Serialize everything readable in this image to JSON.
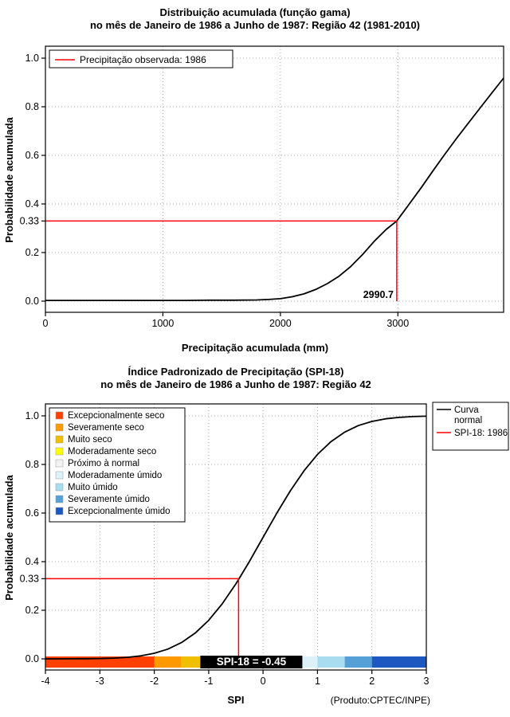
{
  "page": {
    "background": "#FFFFFF"
  },
  "chart_data": [
    {
      "id": "gamma_cdf",
      "type": "line",
      "title": "Distribuição acumulada (função gama)",
      "subtitle": "no mês de Janeiro de 1986 a Junho de 1987: Região 42 (1981-2010)",
      "xlabel": "Precipitação acumulada (mm)",
      "ylabel": "Probabilidade acumulada",
      "xlim": [
        0,
        3900
      ],
      "ylim": [
        0,
        1
      ],
      "grid": true,
      "xticks": {
        "values": [
          0,
          1000,
          2000,
          3000
        ],
        "labels": [
          "0",
          "1000",
          "2000",
          "3000"
        ]
      },
      "yticks": {
        "values": [
          0,
          0.2,
          0.4,
          0.6,
          0.8,
          1
        ],
        "labels": [
          "0.0",
          "0.2",
          "0.4",
          "0.6",
          "0.8",
          "1.0"
        ]
      },
      "ytick_extra": {
        "value": 0.33,
        "label": "0.33"
      },
      "legend": [
        {
          "label": "Precipitação observada: 1986",
          "color": "#FF0000",
          "swatch": "line"
        }
      ],
      "series": [
        {
          "name": "Distribuição gama acumulada",
          "color": "#000000",
          "x": [
            0,
            200,
            400,
            600,
            800,
            1000,
            1200,
            1400,
            1600,
            1800,
            1900,
            2000,
            2100,
            2200,
            2300,
            2400,
            2500,
            2600,
            2700,
            2800,
            2900,
            2990.7,
            3100,
            3200,
            3300,
            3400,
            3500,
            3600,
            3700,
            3800,
            3900
          ],
          "y": [
            0.003,
            0.003,
            0.003,
            0.003,
            0.003,
            0.003,
            0.003,
            0.004,
            0.004,
            0.005,
            0.007,
            0.01,
            0.018,
            0.03,
            0.048,
            0.072,
            0.103,
            0.143,
            0.192,
            0.247,
            0.295,
            0.33,
            0.402,
            0.468,
            0.537,
            0.605,
            0.67,
            0.733,
            0.795,
            0.857,
            0.918
          ]
        }
      ],
      "annotation": {
        "x": 2990.7,
        "y": 0.33,
        "label": "2990.7",
        "color": "#FF0000"
      }
    },
    {
      "id": "spi18_cdf",
      "type": "line",
      "title": "Índice Padronizado de Precipitação (SPI-18)",
      "subtitle": "no mês de Janeiro de 1986 a Junho de 1987: Região 42",
      "xlabel": "SPI",
      "ylabel": "Probabilidade acumulada",
      "xlim": [
        -4,
        3
      ],
      "ylim": [
        0,
        1
      ],
      "grid": true,
      "xticks": {
        "values": [
          -4,
          -3,
          -2,
          -1,
          0,
          1,
          2,
          3
        ],
        "labels": [
          "-4",
          "-3",
          "-2",
          "-1",
          "0",
          "1",
          "2",
          "3"
        ]
      },
      "yticks": {
        "values": [
          0,
          0.2,
          0.4,
          0.6,
          0.8,
          1
        ],
        "labels": [
          "0.0",
          "0.2",
          "0.4",
          "0.6",
          "0.8",
          "1.0"
        ]
      },
      "ytick_extra": {
        "value": 0.33,
        "label": "0.33"
      },
      "legend_categories": [
        {
          "label": "Excepcionalmente seco",
          "color": "#FF4000"
        },
        {
          "label": "Severamente seco",
          "color": "#FF9900"
        },
        {
          "label": "Muito seco",
          "color": "#F0C000"
        },
        {
          "label": "Moderadamente seco",
          "color": "#FFFF00"
        },
        {
          "label": "Próximo à normal",
          "color": "#F2F2F2"
        },
        {
          "label": "Moderadamente úmido",
          "color": "#DCF2F8"
        },
        {
          "label": "Muito úmido",
          "color": "#A8DCEE"
        },
        {
          "label": "Severamente úmido",
          "color": "#56A0D8"
        },
        {
          "label": "Excepcionalmente úmido",
          "color": "#1C58C0"
        }
      ],
      "legend_lines": [
        {
          "lines": [
            "Curva",
            "normal"
          ],
          "color": "#000000"
        },
        {
          "lines": [
            "SPI-18: 1986"
          ],
          "color": "#FF0000"
        }
      ],
      "band": {
        "breaks": [
          -4,
          -2,
          -1.5,
          -1,
          -0.5,
          0.5,
          1,
          1.5,
          2,
          3
        ]
      },
      "series": [
        {
          "name": "Curva normal",
          "color": "#000000",
          "x": [
            -4,
            -3.75,
            -3.5,
            -3.25,
            -3,
            -2.75,
            -2.5,
            -2.25,
            -2,
            -1.75,
            -1.5,
            -1.25,
            -1,
            -0.75,
            -0.5,
            -0.45,
            -0.25,
            0,
            0.25,
            0.5,
            0.75,
            1,
            1.25,
            1.5,
            1.75,
            2,
            2.25,
            2.5,
            2.75,
            3
          ],
          "y": [
            0.0,
            0.0001,
            0.0002,
            0.0006,
            0.0013,
            0.003,
            0.0062,
            0.0122,
            0.0228,
            0.0401,
            0.0668,
            0.1056,
            0.1587,
            0.2266,
            0.3085,
            0.3264,
            0.4013,
            0.5,
            0.5987,
            0.6915,
            0.7734,
            0.8413,
            0.8944,
            0.9332,
            0.9599,
            0.9772,
            0.9878,
            0.9938,
            0.997,
            0.9987
          ]
        }
      ],
      "annotation": {
        "x": -0.45,
        "y": 0.33,
        "label": "SPI-18 = -0.45",
        "color": "#FF0000",
        "label_bg": "#000000",
        "label_fg": "#FFFFFF"
      },
      "footer": "(Produto:CPTEC/INPE)"
    }
  ]
}
